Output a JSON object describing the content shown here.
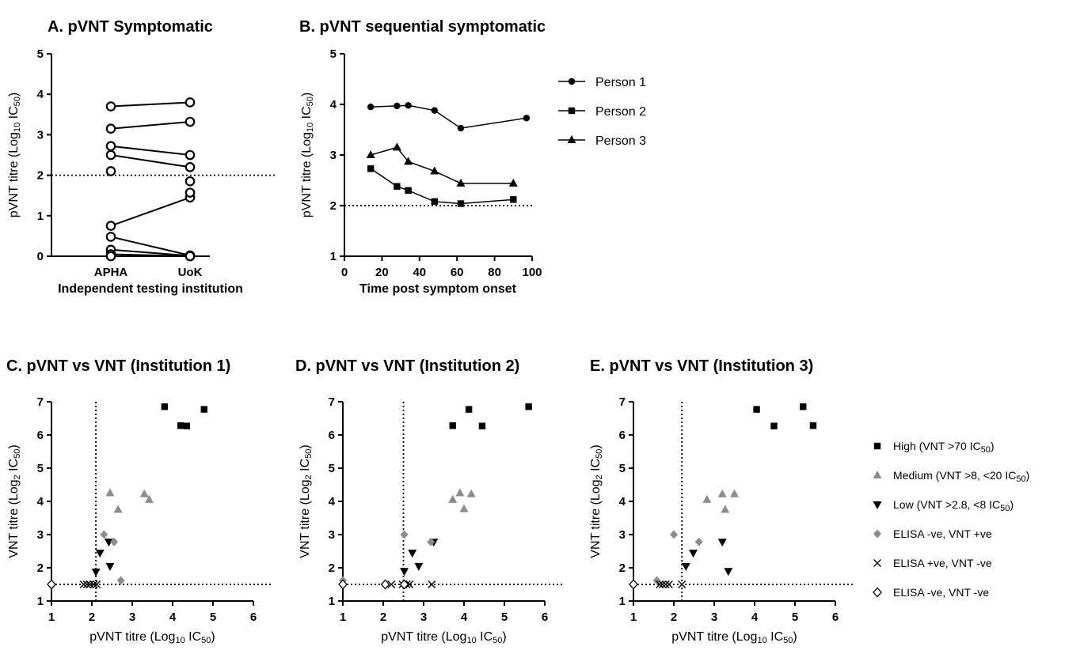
{
  "colors": {
    "black": "#000000",
    "grey": "#8c8c8c"
  },
  "chart_data": [
    {
      "id": "A",
      "type": "line",
      "title": "A. pVNT Symptomatic",
      "ylabel": "pVNT titre (Log10 IC50)",
      "ylabel_parts": [
        "pVNT titre (Log",
        "10",
        " IC",
        "50",
        ")"
      ],
      "xlabel": "Independent testing institution",
      "categories": [
        "APHA",
        "UoK"
      ],
      "ylim": [
        0,
        5
      ],
      "yticks": [
        0,
        1,
        2,
        3,
        4,
        5
      ],
      "threshold_y": 2,
      "pairs": [
        [
          3.7,
          3.8
        ],
        [
          3.15,
          3.32
        ],
        [
          2.72,
          2.5
        ],
        [
          2.5,
          2.2
        ],
        [
          0.75,
          1.45
        ],
        [
          0.48,
          0.02
        ],
        [
          0.16,
          0.01
        ],
        [
          0.05,
          0.0
        ],
        [
          0.0,
          0.0
        ]
      ],
      "unpaired": {
        "APHA": [
          2.1
        ],
        "UoK": [
          1.85,
          1.57
        ]
      }
    },
    {
      "id": "B",
      "type": "line",
      "title": "B. pVNT sequential symptomatic",
      "ylabel": "pVNT titre (Log10 IC50)",
      "ylabel_parts": [
        "pVNT titre (Log",
        "10",
        " IC",
        "50",
        ")"
      ],
      "xlabel": "Time post symptom onset",
      "xlim": [
        0,
        100
      ],
      "xticks": [
        0,
        20,
        40,
        60,
        80,
        100
      ],
      "ylim": [
        1,
        5
      ],
      "yticks": [
        1,
        2,
        3,
        4,
        5
      ],
      "threshold_y": 2,
      "series": [
        {
          "name": "Person 1",
          "marker": "circle",
          "x": [
            14,
            28,
            34,
            48,
            62,
            97
          ],
          "y": [
            3.95,
            3.97,
            3.98,
            3.88,
            3.53,
            3.73
          ]
        },
        {
          "name": "Person 2",
          "marker": "square",
          "x": [
            14,
            28,
            34,
            48,
            62,
            90
          ],
          "y": [
            2.73,
            2.38,
            2.3,
            2.08,
            2.04,
            2.12
          ]
        },
        {
          "name": "Person 3",
          "marker": "triangle",
          "x": [
            14,
            28,
            34,
            48,
            62,
            90
          ],
          "y": [
            3.0,
            3.15,
            2.87,
            2.68,
            2.44,
            2.44
          ]
        }
      ]
    },
    {
      "id": "C",
      "type": "scatter",
      "title": "C. pVNT vs VNT (Institution 1)",
      "ylabel": "VNT titre (Log2 IC50)",
      "ylabel_parts": [
        "VNT titre (Log",
        "2",
        " IC",
        "50",
        ")"
      ],
      "xlabel": "pVNT titre (Log10 IC50)",
      "xlabel_parts": [
        "pVNT titre (Log",
        "10",
        " IC",
        "50",
        ")"
      ],
      "xlim": [
        1,
        6
      ],
      "xticks": [
        1,
        2,
        3,
        4,
        5,
        6
      ],
      "ylim": [
        1,
        7
      ],
      "yticks": [
        1,
        2,
        3,
        4,
        5,
        6,
        7
      ],
      "threshold_x": 2.1,
      "threshold_y": 1.5,
      "groups": {
        "high": [
          [
            3.8,
            6.85
          ],
          [
            4.2,
            6.28
          ],
          [
            4.35,
            6.27
          ],
          [
            4.78,
            6.77
          ]
        ],
        "medium": [
          [
            2.45,
            4.25
          ],
          [
            2.65,
            3.75
          ],
          [
            3.3,
            4.22
          ],
          [
            3.42,
            4.05
          ]
        ],
        "low": [
          [
            2.1,
            1.88
          ],
          [
            2.2,
            2.45
          ],
          [
            2.42,
            2.78
          ],
          [
            2.45,
            2.05
          ]
        ],
        "elisa_neg_vnt_pos": [
          [
            2.3,
            3.0
          ],
          [
            2.55,
            2.78
          ],
          [
            2.72,
            1.62
          ]
        ],
        "elisa_pos_vnt_neg": [
          [
            1.8,
            1.5
          ],
          [
            1.88,
            1.5
          ],
          [
            1.95,
            1.5
          ],
          [
            2.05,
            1.5
          ],
          [
            2.12,
            1.5
          ]
        ],
        "elisa_neg_vnt_neg": [
          [
            1.0,
            1.5
          ]
        ]
      }
    },
    {
      "id": "D",
      "type": "scatter",
      "title": "D. pVNT vs VNT (Institution 2)",
      "ylabel": "VNT titre (Log2 IC50)",
      "ylabel_parts": [
        "VNT titre (Log",
        "2",
        " IC",
        "50",
        ")"
      ],
      "xlabel": "pVNT titre (Log10 IC50)",
      "xlabel_parts": [
        "pVNT titre (Log",
        "10",
        " IC",
        "50",
        ")"
      ],
      "xlim": [
        1,
        6
      ],
      "xticks": [
        1,
        2,
        3,
        4,
        5,
        6
      ],
      "ylim": [
        1,
        7
      ],
      "yticks": [
        1,
        2,
        3,
        4,
        5,
        6,
        7
      ],
      "threshold_x": 2.5,
      "threshold_y": 1.5,
      "groups": {
        "high": [
          [
            3.72,
            6.28
          ],
          [
            4.12,
            6.77
          ],
          [
            4.45,
            6.27
          ],
          [
            5.6,
            6.85
          ]
        ],
        "medium": [
          [
            3.72,
            4.05
          ],
          [
            3.9,
            4.25
          ],
          [
            4.0,
            3.77
          ],
          [
            4.18,
            4.22
          ]
        ],
        "low": [
          [
            2.52,
            1.9
          ],
          [
            2.72,
            2.45
          ],
          [
            2.88,
            2.05
          ],
          [
            3.25,
            2.78
          ]
        ],
        "elisa_neg_vnt_pos": [
          [
            1.0,
            1.62
          ],
          [
            2.52,
            3.0
          ],
          [
            3.18,
            2.78
          ]
        ],
        "elisa_pos_vnt_neg": [
          [
            2.2,
            1.5
          ],
          [
            2.48,
            1.5
          ],
          [
            2.58,
            1.5
          ],
          [
            2.65,
            1.5
          ],
          [
            3.2,
            1.5
          ]
        ],
        "elisa_neg_vnt_neg": [
          [
            1.0,
            1.5
          ],
          [
            2.05,
            1.5
          ],
          [
            2.52,
            1.5
          ]
        ]
      }
    },
    {
      "id": "E",
      "type": "scatter",
      "title": "E. pVNT vs VNT (Institution 3)",
      "ylabel": "VNT titre (Log2 IC50)",
      "ylabel_parts": [
        "VNT titre (Log",
        "2",
        " IC",
        "50",
        ")"
      ],
      "xlabel": "pVNT titre (Log10 IC50)",
      "xlabel_parts": [
        "pVNT titre (Log",
        "10",
        " IC",
        "50",
        ")"
      ],
      "xlim": [
        1,
        6
      ],
      "xticks": [
        1,
        2,
        3,
        4,
        5,
        6
      ],
      "ylim": [
        1,
        7
      ],
      "yticks": [
        1,
        2,
        3,
        4,
        5,
        6,
        7
      ],
      "threshold_x": 2.2,
      "threshold_y": 1.5,
      "groups": {
        "high": [
          [
            4.05,
            6.77
          ],
          [
            4.48,
            6.27
          ],
          [
            5.2,
            6.85
          ],
          [
            5.45,
            6.28
          ]
        ],
        "medium": [
          [
            2.82,
            4.05
          ],
          [
            3.2,
            4.22
          ],
          [
            3.27,
            3.75
          ],
          [
            3.5,
            4.22
          ]
        ],
        "low": [
          [
            2.3,
            2.05
          ],
          [
            2.48,
            2.45
          ],
          [
            3.2,
            2.78
          ],
          [
            3.35,
            1.9
          ]
        ],
        "elisa_neg_vnt_pos": [
          [
            1.58,
            1.62
          ],
          [
            2.0,
            3.0
          ],
          [
            2.62,
            2.78
          ]
        ],
        "elisa_pos_vnt_neg": [
          [
            1.65,
            1.5
          ],
          [
            1.72,
            1.5
          ],
          [
            1.8,
            1.5
          ],
          [
            1.88,
            1.5
          ],
          [
            2.2,
            1.5
          ]
        ],
        "elisa_neg_vnt_neg": [
          [
            1.0,
            1.5
          ]
        ]
      }
    }
  ],
  "scatter_legend": [
    {
      "key": "high",
      "marker": "square",
      "color": "#000000",
      "parts": [
        "High (VNT >70 IC",
        "50",
        ")"
      ]
    },
    {
      "key": "medium",
      "marker": "triangle",
      "color": "#8c8c8c",
      "parts": [
        "Medium (VNT >8, <20 IC",
        "50",
        ")"
      ]
    },
    {
      "key": "low",
      "marker": "triangle-down",
      "color": "#000000",
      "parts": [
        "Low (VNT >2.8, <8 IC",
        "50",
        ")"
      ]
    },
    {
      "key": "elisa_neg_vnt_pos",
      "marker": "diamond",
      "color": "#8c8c8c",
      "parts": [
        "ELISA -ve, VNT +ve"
      ]
    },
    {
      "key": "elisa_pos_vnt_neg",
      "marker": "cross",
      "color": "#000000",
      "parts": [
        "ELISA +ve, VNT -ve"
      ]
    },
    {
      "key": "elisa_neg_vnt_neg",
      "marker": "diamond-open",
      "color": "#000000",
      "parts": [
        "ELISA -ve, VNT -ve"
      ]
    }
  ]
}
